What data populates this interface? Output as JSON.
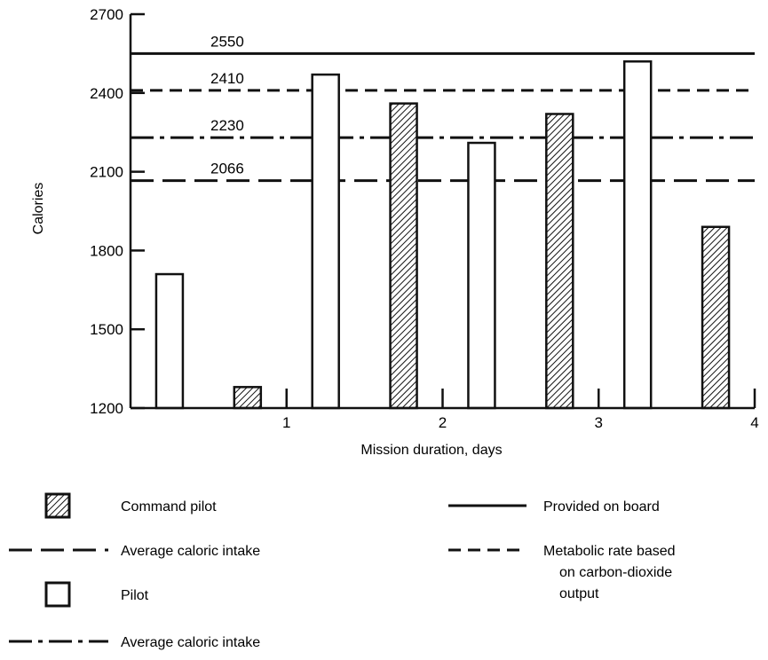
{
  "chart_data": {
    "type": "bar",
    "title": "",
    "xlabel": "Mission duration, days",
    "ylabel": "Calories",
    "xlim": [
      0,
      4
    ],
    "ylim": [
      1200,
      2700
    ],
    "y_ticks": [
      "1200",
      "1500",
      "1800",
      "2100",
      "2400",
      "2700"
    ],
    "x_ticks": [
      "1",
      "2",
      "3",
      "4"
    ],
    "bars": [
      {
        "series": "Pilot",
        "x": 0.25,
        "value": 1710
      },
      {
        "series": "Command pilot",
        "x": 0.75,
        "value": 1280
      },
      {
        "series": "Pilot",
        "x": 1.25,
        "value": 2470
      },
      {
        "series": "Command pilot",
        "x": 1.75,
        "value": 2360
      },
      {
        "series": "Pilot",
        "x": 2.25,
        "value": 2210
      },
      {
        "series": "Command pilot",
        "x": 2.75,
        "value": 2320
      },
      {
        "series": "Pilot",
        "x": 3.25,
        "value": 2520
      },
      {
        "series": "Command pilot",
        "x": 3.75,
        "value": 1890
      }
    ],
    "reference_lines": [
      {
        "value": 2550,
        "label": "2550",
        "style": "solid"
      },
      {
        "value": 2410,
        "label": "2410",
        "style": "short-dash"
      },
      {
        "value": 2230,
        "label": "2230",
        "style": "dash-dot"
      },
      {
        "value": 2066,
        "label": "2066",
        "style": "long-dash"
      }
    ],
    "legend": [
      {
        "label_lines": [
          "Command pilot"
        ],
        "symbol": "hatched-box"
      },
      {
        "label_lines": [
          "Average caloric intake"
        ],
        "symbol": "long-dash"
      },
      {
        "label_lines": [
          "Pilot"
        ],
        "symbol": "open-box"
      },
      {
        "label_lines": [
          "Average caloric intake"
        ],
        "symbol": "dash-dot"
      },
      {
        "label_lines": [
          "Provided on board"
        ],
        "symbol": "solid"
      },
      {
        "label_lines": [
          "Metabolic rate based",
          "on carbon-dioxide",
          "output"
        ],
        "symbol": "short-dash"
      }
    ]
  }
}
